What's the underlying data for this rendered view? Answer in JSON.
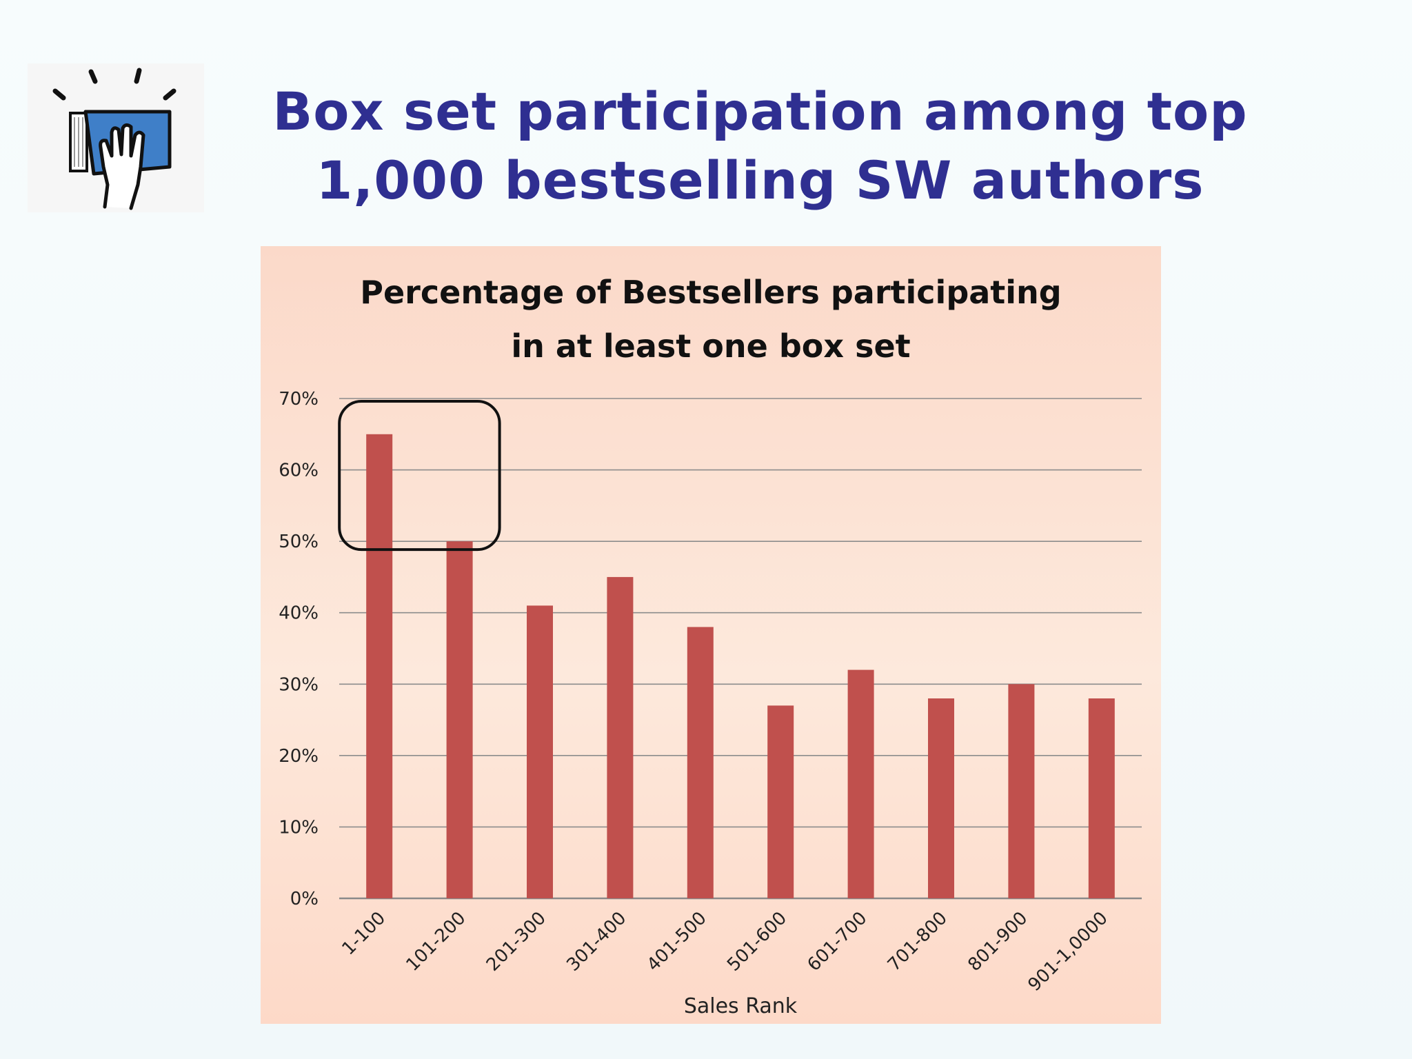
{
  "slide": {
    "title_line1": "Box set participation among top",
    "title_line2": "1,000 bestselling SW authors",
    "logo_icon": "book-hand-icon",
    "title_color": "#2f2f91"
  },
  "chart_data": {
    "type": "bar",
    "title_line1": "Percentage of Bestsellers participating",
    "title_line2": "in at least one box set",
    "xlabel": "Sales Rank",
    "ylabel": "",
    "categories": [
      "1-100",
      "101-200",
      "201-300",
      "301-400",
      "401-500",
      "501-600",
      "601-700",
      "701-800",
      "801-900",
      "901-1,0000"
    ],
    "values": [
      65,
      50,
      41,
      45,
      38,
      27,
      32,
      28,
      30,
      28
    ],
    "ylim": [
      0,
      70
    ],
    "yticks": [
      0,
      10,
      20,
      30,
      40,
      50,
      60,
      70
    ],
    "ytick_labels": [
      "0%",
      "10%",
      "20%",
      "30%",
      "40%",
      "50%",
      "60%",
      "70%"
    ],
    "grid": true,
    "legend": "none",
    "bar_color": "#c0504d",
    "highlight": {
      "categories": [
        "1-100",
        "101-200"
      ],
      "shape": "rounded-rectangle"
    }
  }
}
